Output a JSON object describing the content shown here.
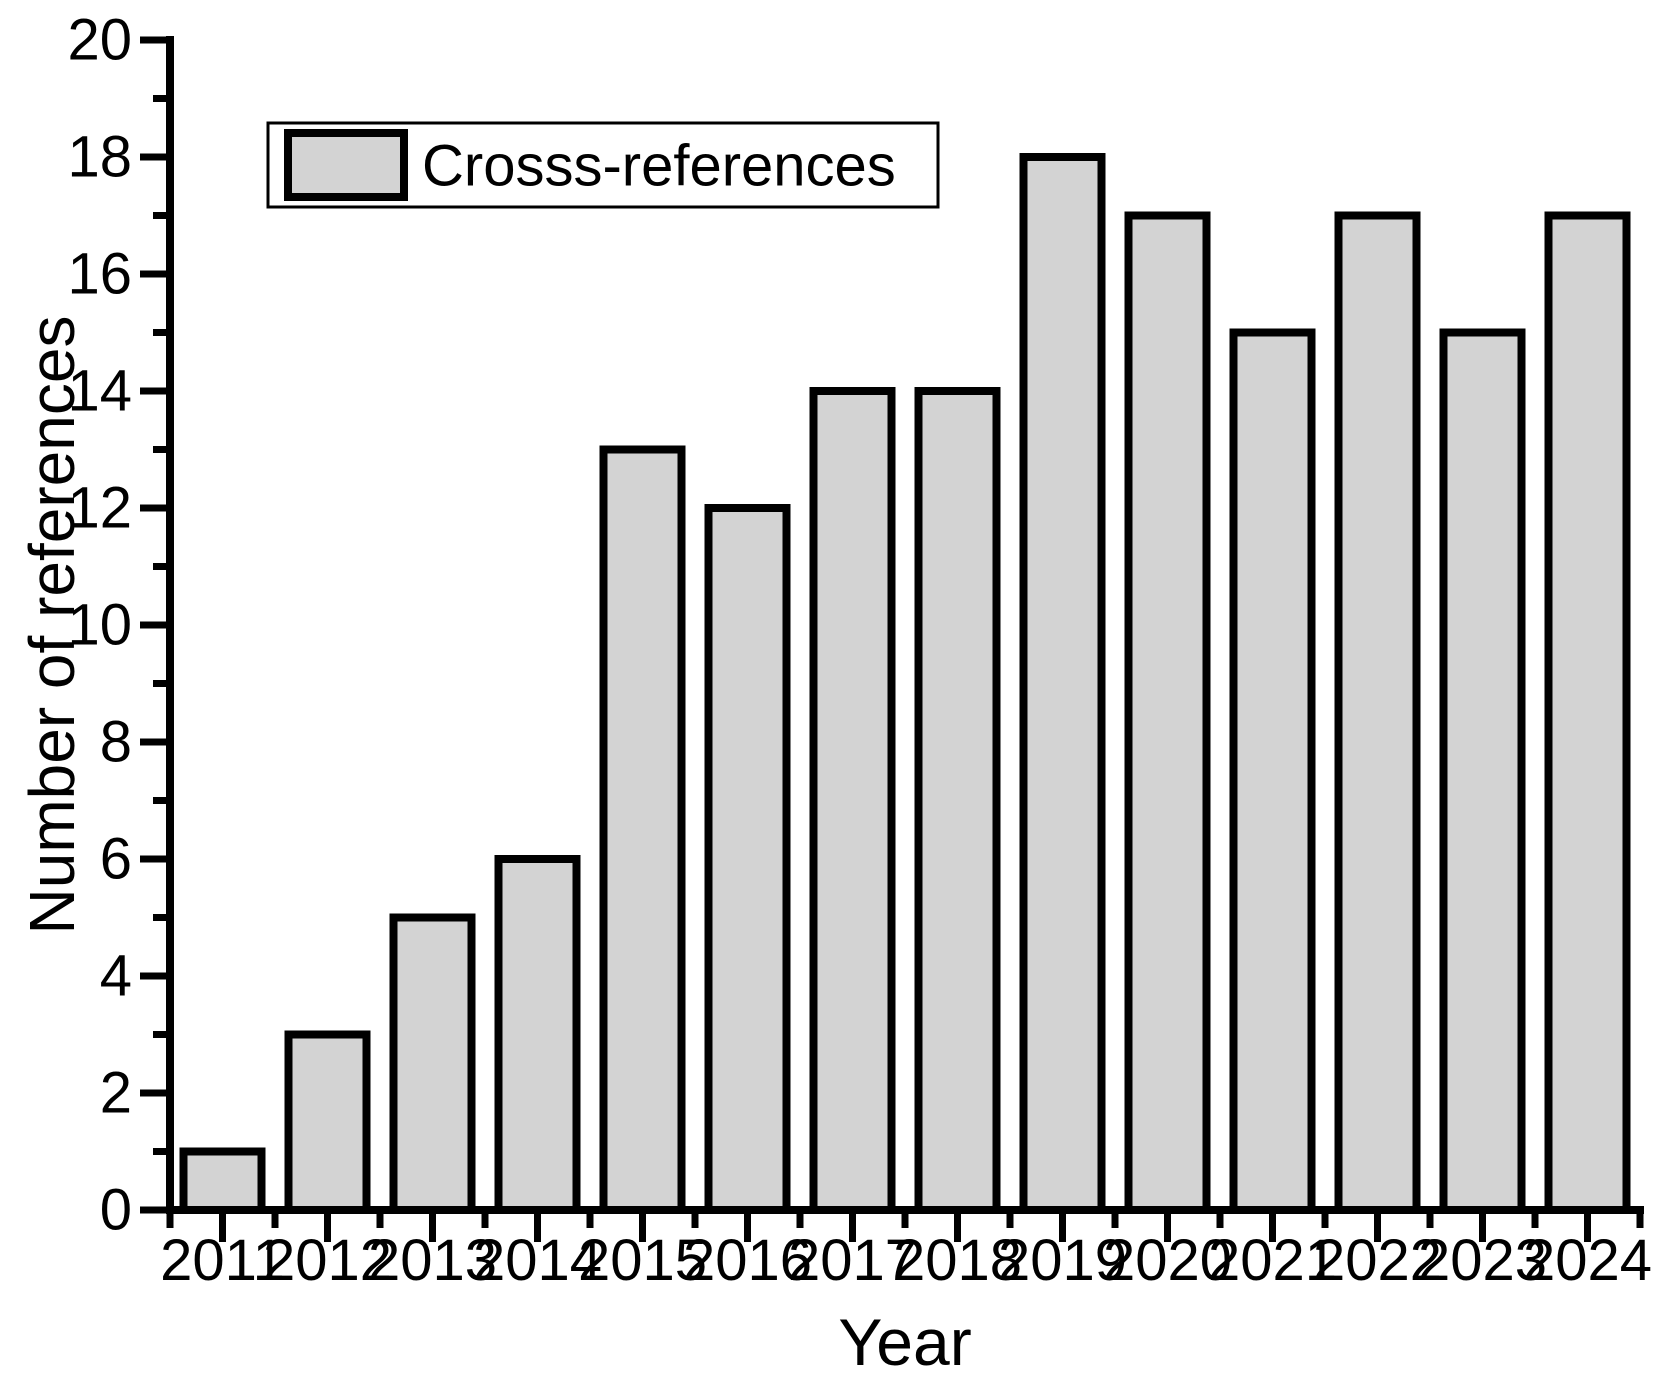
{
  "figure": {
    "background": "#FFFFFF"
  },
  "chart_data": {
    "type": "bar",
    "title": "",
    "categories": [
      "2011",
      "2012",
      "2013",
      "2014",
      "2015",
      "2016",
      "2017",
      "2018",
      "2019",
      "2020",
      "2021",
      "2022",
      "2023",
      "2024"
    ],
    "series": [
      {
        "name": "Crosss-references",
        "values": [
          1,
          3,
          5,
          6,
          13,
          12,
          14,
          14,
          18,
          17,
          15,
          17,
          15,
          17
        ]
      }
    ],
    "xlabel": "Year",
    "ylabel": "Number of references",
    "ylim": [
      0,
      20
    ],
    "y_major_step": 2,
    "y_minor_step": 1,
    "y_tick_labels": [
      "0",
      "2",
      "4",
      "6",
      "8",
      "10",
      "12",
      "14",
      "16",
      "18",
      "20"
    ],
    "grid": false,
    "legend": {
      "entries": [
        "Crosss-references"
      ],
      "position": "top-left-inside"
    },
    "colors": {
      "bar_fill": "#D3D3D3",
      "bar_border": "#000000",
      "axis": "#000000",
      "legend_box_fill": "#FFFFFF",
      "legend_box_border": "#000000"
    }
  }
}
